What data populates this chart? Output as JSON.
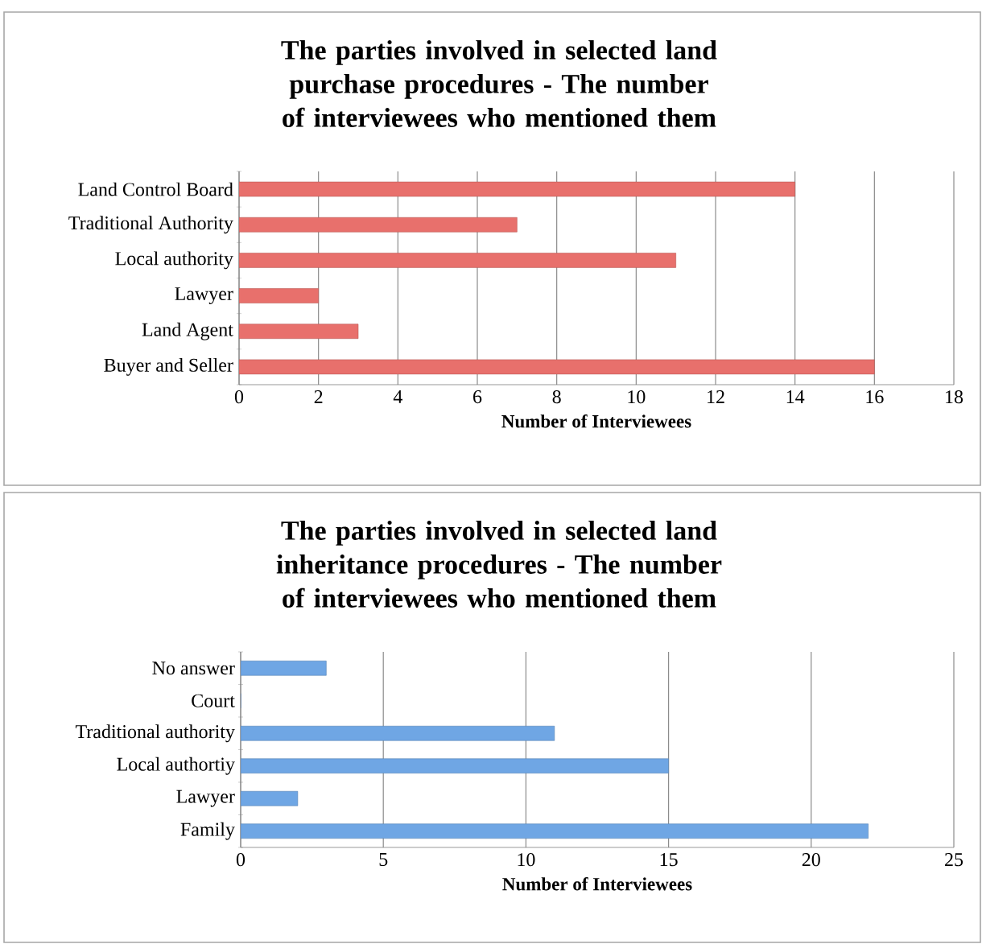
{
  "chart_data": [
    {
      "type": "bar",
      "orientation": "horizontal",
      "title": "The parties involved in selected land purchase procedures - The number of interviewees who mentioned them",
      "xlabel": "Number of Interviewees",
      "categories": [
        "Land Control Board",
        "Traditional Authority",
        "Local authority",
        "Lawyer",
        "Land Agent",
        "Buyer and Seller"
      ],
      "values": [
        14,
        7,
        11,
        2,
        3,
        16
      ],
      "color": "#e8706c",
      "xlim": [
        0,
        18
      ],
      "xticks": [
        0,
        2,
        4,
        6,
        8,
        10,
        12,
        14,
        16,
        18
      ],
      "grid": "x"
    },
    {
      "type": "bar",
      "orientation": "horizontal",
      "title": "The parties involved in selected land inheritance procedures - The number of interviewees who mentioned them",
      "xlabel": "Number of Interviewees",
      "categories": [
        "No answer",
        "Court",
        "Traditional authority",
        "Local authortiy",
        "Lawyer",
        "Family"
      ],
      "values": [
        3,
        0,
        11,
        15,
        2,
        22
      ],
      "color": "#6fa6e4",
      "xlim": [
        0,
        25
      ],
      "xticks": [
        0,
        5,
        10,
        15,
        20,
        25
      ],
      "grid": "x"
    }
  ]
}
